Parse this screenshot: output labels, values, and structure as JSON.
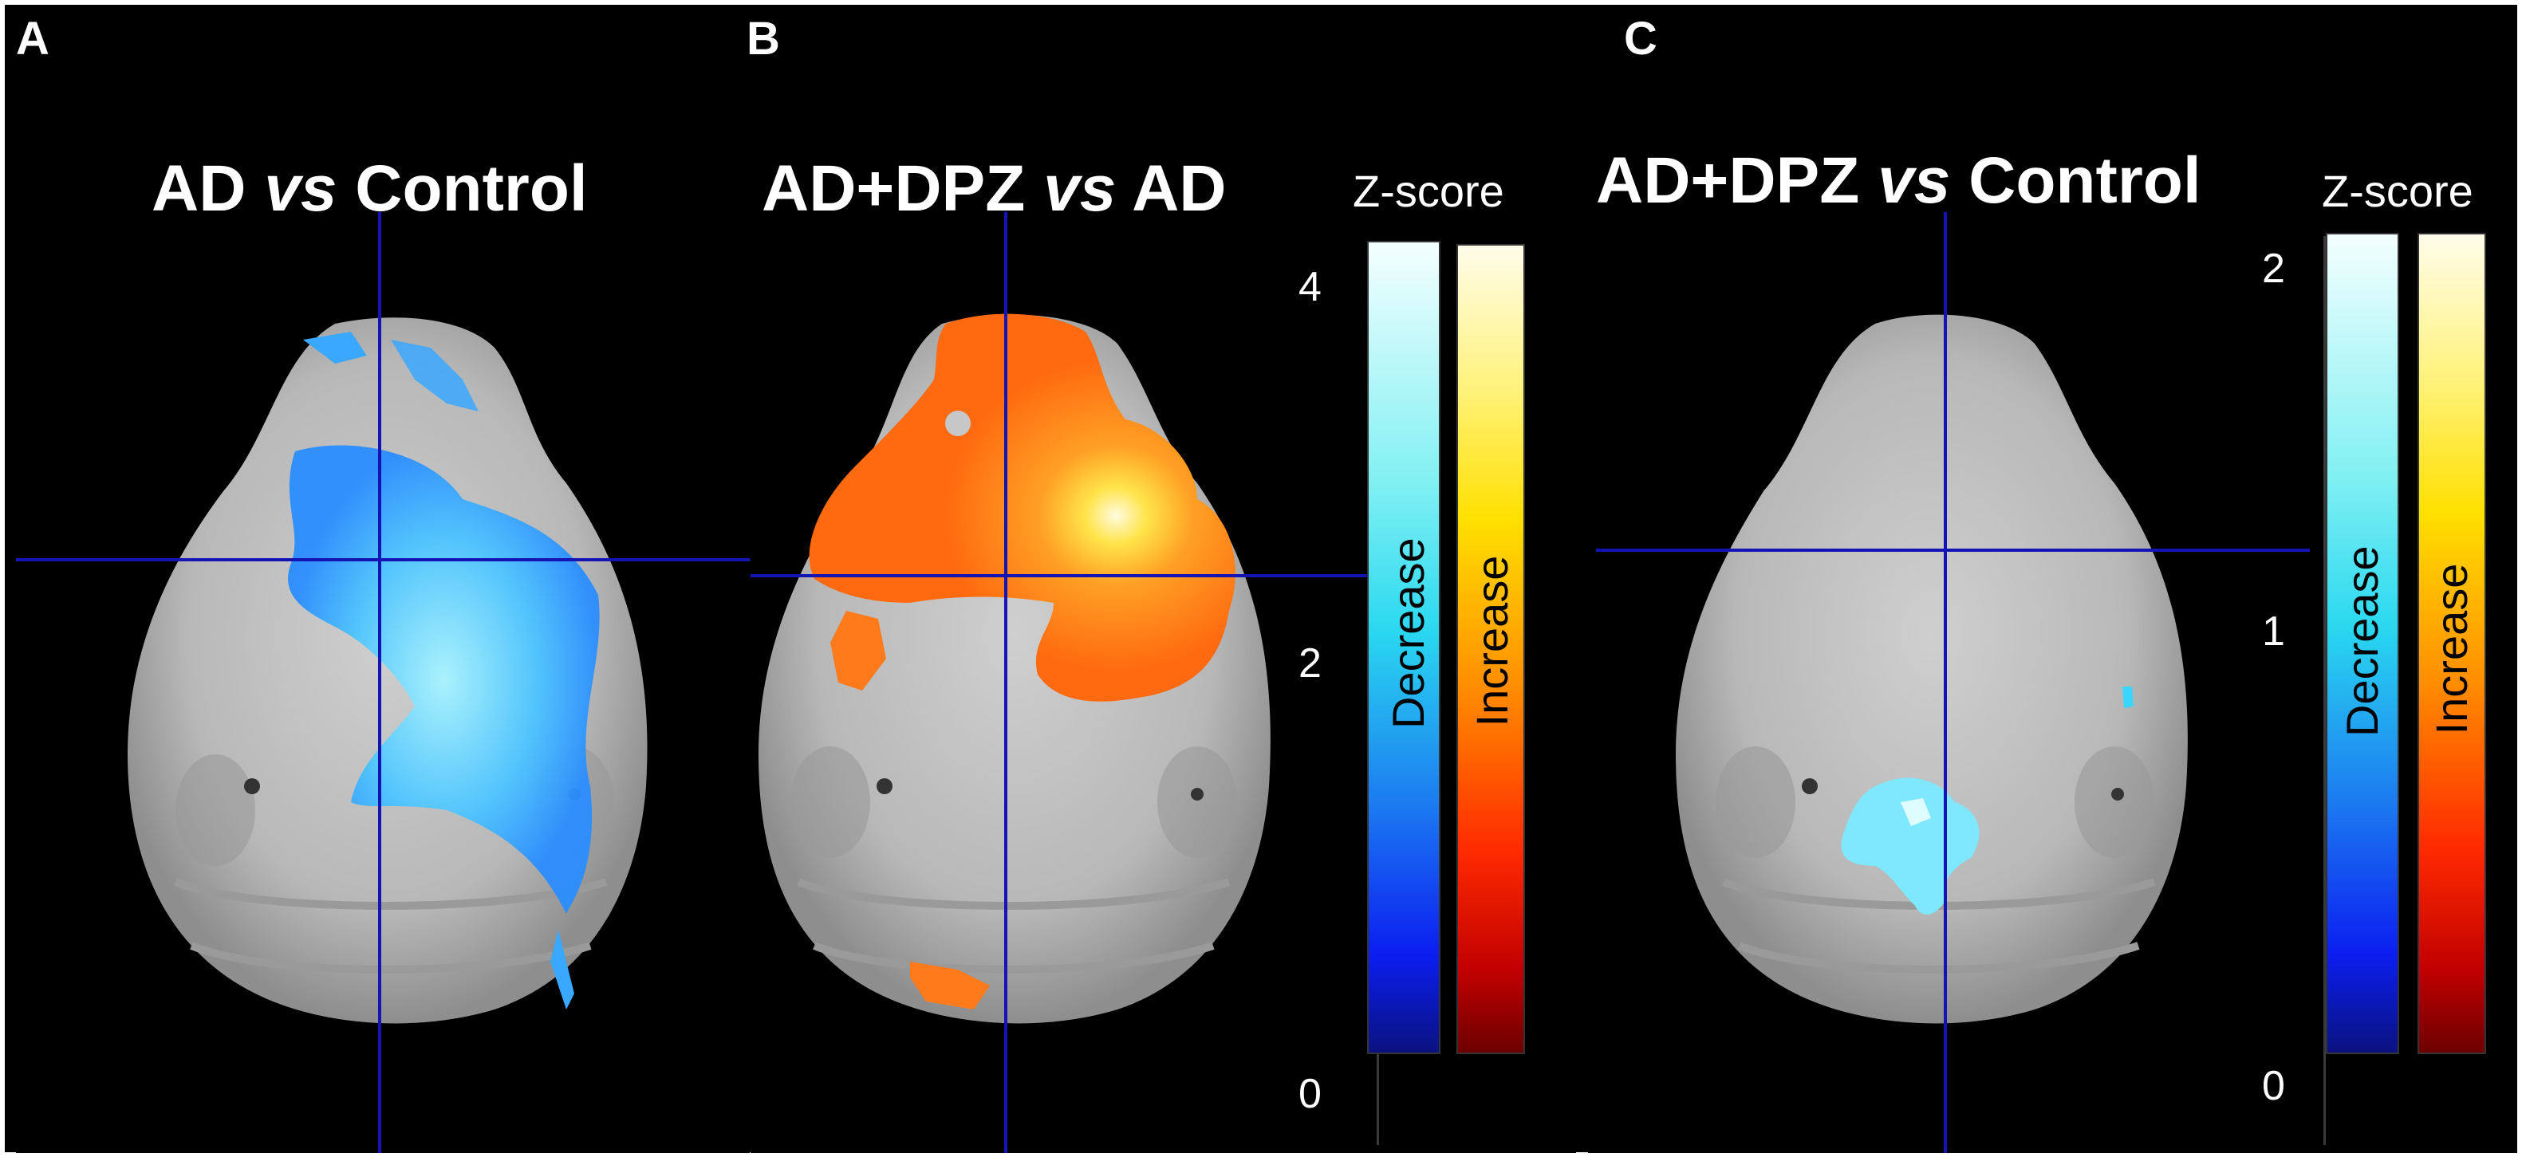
{
  "panels": [
    {
      "letter": "A",
      "title_prefix": "AD ",
      "title_italic": "vs",
      "title_suffix": " Control"
    },
    {
      "letter": "B",
      "title_prefix": "AD+DPZ ",
      "title_italic": "vs",
      "title_suffix": " AD"
    },
    {
      "letter": "C",
      "title_prefix": "AD+DPZ ",
      "title_italic": "vs",
      "title_suffix": " Control"
    }
  ],
  "colorscale_b": {
    "label": "Z-score",
    "tick_max": "4",
    "tick_mid": "2",
    "tick_min": "0",
    "decrease_label": "Decrease",
    "increase_label": "Increase"
  },
  "colorscale_c": {
    "label": "Z-score",
    "tick_max": "2",
    "tick_mid": "1",
    "tick_min": "0",
    "decrease_label": "Decrease",
    "increase_label": "Increase"
  },
  "colors": {
    "background": "#000000",
    "crosshair": "#1414b4",
    "decrease_map": "#3aa8ff",
    "increase_map": "#ff7a1a"
  }
}
